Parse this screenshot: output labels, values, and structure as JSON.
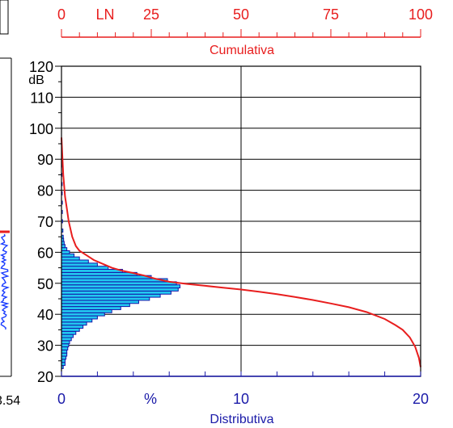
{
  "chart_data": {
    "type": "bar",
    "y_unit": "dB",
    "ylim": [
      20,
      120
    ],
    "y_ticks": [
      20,
      30,
      40,
      50,
      60,
      70,
      80,
      90,
      100,
      110,
      120
    ],
    "grid": true,
    "bottom_axis": {
      "label": "Distributiva",
      "unit_symbol": "%",
      "range": [
        0,
        20
      ],
      "tick_labels": [
        "0",
        "10",
        "20"
      ]
    },
    "top_axis": {
      "label": "Cumulativa",
      "unit_symbol": "LN",
      "range": [
        0,
        100
      ],
      "tick_labels": [
        "0",
        "25",
        "50",
        "75",
        "100"
      ]
    },
    "distribution_bins": [
      {
        "db": 23,
        "percent": 0.1
      },
      {
        "db": 24,
        "percent": 0.2
      },
      {
        "db": 25,
        "percent": 0.2
      },
      {
        "db": 26,
        "percent": 0.25
      },
      {
        "db": 27,
        "percent": 0.3
      },
      {
        "db": 28,
        "percent": 0.3
      },
      {
        "db": 29,
        "percent": 0.35
      },
      {
        "db": 30,
        "percent": 0.4
      },
      {
        "db": 31,
        "percent": 0.45
      },
      {
        "db": 32,
        "percent": 0.55
      },
      {
        "db": 33,
        "percent": 0.65
      },
      {
        "db": 34,
        "percent": 0.8
      },
      {
        "db": 35,
        "percent": 1.0
      },
      {
        "db": 36,
        "percent": 1.2
      },
      {
        "db": 37,
        "percent": 1.4
      },
      {
        "db": 38,
        "percent": 1.7
      },
      {
        "db": 39,
        "percent": 2.0
      },
      {
        "db": 40,
        "percent": 2.4
      },
      {
        "db": 41,
        "percent": 2.8
      },
      {
        "db": 42,
        "percent": 3.3
      },
      {
        "db": 43,
        "percent": 3.8
      },
      {
        "db": 44,
        "percent": 4.3
      },
      {
        "db": 45,
        "percent": 4.9
      },
      {
        "db": 46,
        "percent": 5.5
      },
      {
        "db": 47,
        "percent": 6.1
      },
      {
        "db": 48,
        "percent": 6.5
      },
      {
        "db": 49,
        "percent": 6.6
      },
      {
        "db": 50,
        "percent": 6.4
      },
      {
        "db": 51,
        "percent": 5.9
      },
      {
        "db": 52,
        "percent": 5.0
      },
      {
        "db": 53,
        "percent": 4.2
      },
      {
        "db": 54,
        "percent": 3.4
      },
      {
        "db": 55,
        "percent": 2.6
      },
      {
        "db": 56,
        "percent": 2.0
      },
      {
        "db": 57,
        "percent": 1.5
      },
      {
        "db": 58,
        "percent": 1.0
      },
      {
        "db": 59,
        "percent": 0.7
      },
      {
        "db": 60,
        "percent": 0.45
      },
      {
        "db": 61,
        "percent": 0.3
      },
      {
        "db": 62,
        "percent": 0.2
      },
      {
        "db": 63,
        "percent": 0.15
      },
      {
        "db": 64,
        "percent": 0.12
      },
      {
        "db": 65,
        "percent": 0.1
      },
      {
        "db": 67,
        "percent": 0.08
      },
      {
        "db": 70,
        "percent": 0.06
      },
      {
        "db": 73,
        "percent": 0.05
      },
      {
        "db": 76,
        "percent": 0.05
      },
      {
        "db": 79,
        "percent": 0.04
      },
      {
        "db": 82,
        "percent": 0.04
      },
      {
        "db": 85,
        "percent": 0.03
      },
      {
        "db": 88,
        "percent": 0.03
      }
    ],
    "cumulative_curve": {
      "points": [
        [
          0,
          97
        ],
        [
          0.2,
          92
        ],
        [
          0.5,
          85
        ],
        [
          1,
          78
        ],
        [
          1.5,
          74
        ],
        [
          2,
          70
        ],
        [
          3,
          65
        ],
        [
          4,
          62
        ],
        [
          5,
          60.5
        ],
        [
          7,
          59
        ],
        [
          9,
          57.5
        ],
        [
          11,
          56.5
        ],
        [
          14,
          55
        ],
        [
          17,
          54
        ],
        [
          20,
          53.3
        ],
        [
          23,
          52.5
        ],
        [
          26,
          51.5
        ],
        [
          30,
          50.5
        ],
        [
          35,
          49.8
        ],
        [
          40,
          49.2
        ],
        [
          45,
          48.6
        ],
        [
          50,
          48
        ],
        [
          55,
          47.3
        ],
        [
          60,
          46.5
        ],
        [
          65,
          45.6
        ],
        [
          70,
          44.6
        ],
        [
          75,
          43.5
        ],
        [
          80,
          42.3
        ],
        [
          85,
          40.7
        ],
        [
          90,
          38.5
        ],
        [
          93,
          36.5
        ],
        [
          95,
          35
        ],
        [
          97,
          32.5
        ],
        [
          98.5,
          29.5
        ],
        [
          99.5,
          26
        ],
        [
          100,
          23
        ]
      ]
    },
    "colors": {
      "bar_fill": "#22c8f0",
      "bar_edge": "#1515a8",
      "curve": "#e81e1e",
      "axis_top": "#e81e1e",
      "axis_bottom": "#1a1aa8",
      "frame": "#000000"
    }
  },
  "left_panel": {
    "partial_label": "3.54",
    "colors": {
      "trace": "#1a3cff",
      "marker": "#e81e1e"
    }
  }
}
